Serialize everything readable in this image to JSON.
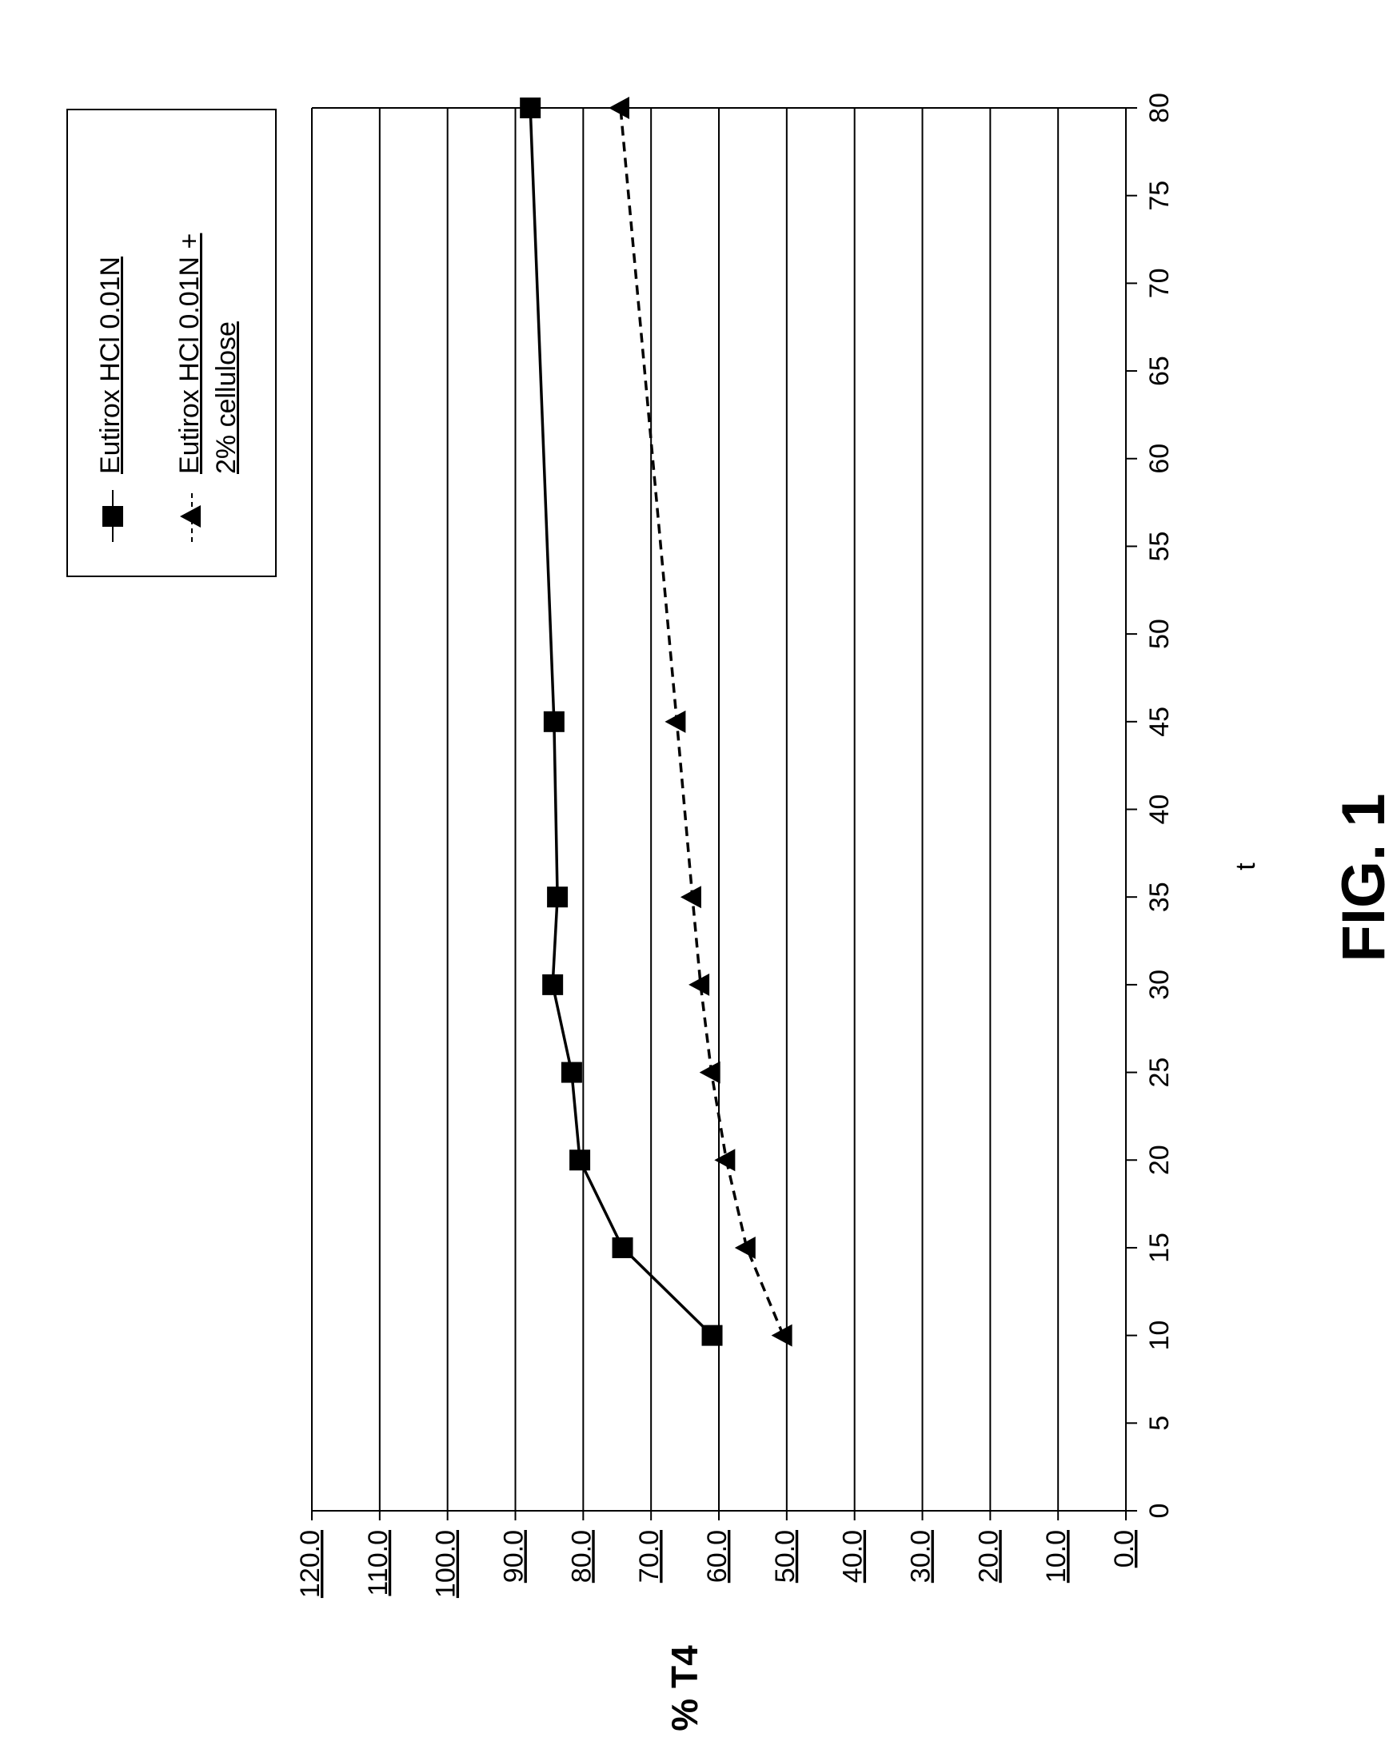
{
  "chart_data": {
    "type": "line",
    "title": "FIG. 1",
    "x_label": "t",
    "y_label": "% T4",
    "x": [
      10,
      15,
      20,
      25,
      30,
      35,
      45,
      80
    ],
    "series": [
      {
        "name": "Eutirox HCl 0.01N",
        "color": "#000000",
        "marker": "square",
        "dash": false,
        "values": [
          61,
          74.2,
          80.5,
          81.7,
          84.5,
          83.8,
          84.3,
          87.8
        ]
      },
      {
        "name": "Eutirox HCl 0.01N + 2% cellulose",
        "color": "#000000",
        "marker": "triangle",
        "dash": true,
        "values": [
          50.5,
          55.9,
          58.9,
          61.1,
          62.7,
          63.9,
          66.2,
          74.5
        ]
      }
    ],
    "xlim": [
      0,
      80
    ],
    "xticks": [
      0,
      5,
      10,
      15,
      20,
      25,
      30,
      35,
      40,
      45,
      50,
      55,
      60,
      65,
      70,
      75,
      80
    ],
    "ylim": [
      0,
      120
    ],
    "yticks": [
      {
        "value": 0,
        "label": "0.0"
      },
      {
        "value": 10,
        "label": "10.0"
      },
      {
        "value": 20,
        "label": "20.0"
      },
      {
        "value": 30,
        "label": "30.0"
      },
      {
        "value": 40,
        "label": "40.0"
      },
      {
        "value": 50,
        "label": "50.0"
      },
      {
        "value": 60,
        "label": "60.0"
      },
      {
        "value": 70,
        "label": "70.0"
      },
      {
        "value": 80,
        "label": "80.0"
      },
      {
        "value": 90,
        "label": "90.0"
      },
      {
        "value": 100,
        "label": "100.0"
      },
      {
        "value": 110,
        "label": "110.0"
      },
      {
        "value": 120,
        "label": "120.0"
      }
    ],
    "grid": true
  }
}
